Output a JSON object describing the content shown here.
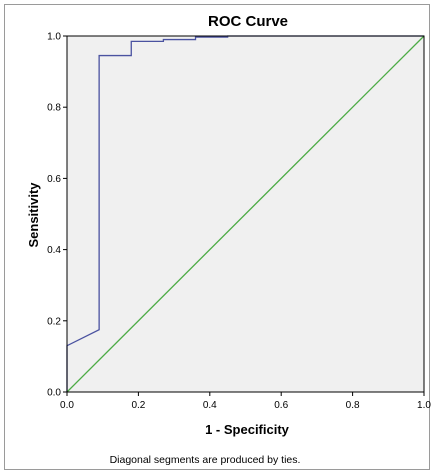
{
  "chart_data": {
    "type": "line",
    "title": "ROC Curve",
    "xlabel": "1 - Specificity",
    "ylabel": "Sensitivity",
    "xlim": [
      0,
      1
    ],
    "ylim": [
      0,
      1
    ],
    "x_ticks": [
      "0.0",
      "0.2",
      "0.4",
      "0.6",
      "0.8",
      "1.0"
    ],
    "y_ticks": [
      "0.0",
      "0.2",
      "0.4",
      "0.6",
      "0.8",
      "1.0"
    ],
    "grid": false,
    "legend": "none",
    "footnote": "Diagonal segments are produced by ties.",
    "series": [
      {
        "color": "#4a52a0",
        "x": [
          0.0,
          0.0,
          0.09,
          0.09,
          0.18,
          0.18,
          0.27,
          0.27,
          0.36,
          0.36,
          0.45,
          0.45,
          1.0
        ],
        "y": [
          0.0,
          0.13,
          0.175,
          0.945,
          0.945,
          0.985,
          0.985,
          0.99,
          0.99,
          0.997,
          0.997,
          1.0,
          1.0
        ]
      },
      {
        "color": "#4cab45",
        "x": [
          0.0,
          1.0
        ],
        "y": [
          0.0,
          1.0
        ]
      }
    ]
  }
}
